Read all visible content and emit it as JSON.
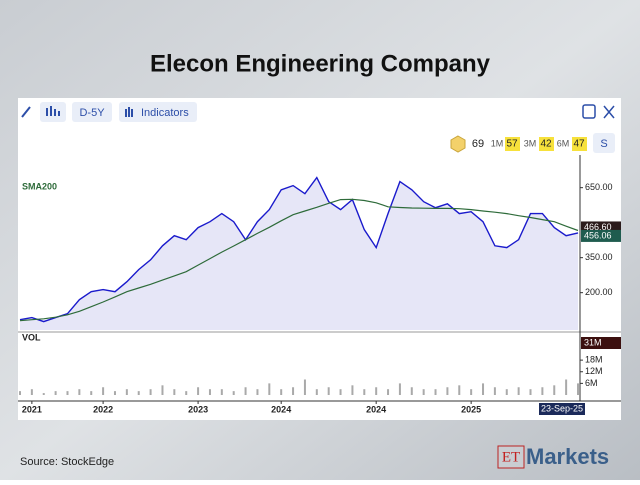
{
  "header": {
    "title": "Elecon Engineering Company"
  },
  "toolbar": {
    "period": "D-5Y",
    "indicators": "Indicators"
  },
  "ratings": {
    "score": 69,
    "items": [
      {
        "label": "1M",
        "value": 57
      },
      {
        "label": "3M",
        "value": 42
      },
      {
        "label": "6M",
        "value": 47
      }
    ],
    "button": "S"
  },
  "chart_data": {
    "type": "line",
    "categories": [
      null,
      "2021",
      null,
      null,
      null,
      null,
      null,
      "2022",
      null,
      null,
      null,
      null,
      null,
      null,
      null,
      "2023",
      null,
      null,
      null,
      null,
      null,
      null,
      "2024",
      null,
      null,
      null,
      null,
      null,
      null,
      null,
      "2024",
      null,
      null,
      null,
      null,
      null,
      null,
      null,
      "2025",
      null,
      null,
      null,
      null,
      null,
      null,
      null,
      null,
      null
    ],
    "series": [
      {
        "color": "#1a1acc",
        "area_color": "#e6e6f7",
        "values": [
          84,
          93,
          76,
          93,
          110,
          170,
          204,
          213,
          204,
          247,
          299,
          341,
          401,
          444,
          427,
          479,
          504,
          539,
          504,
          427,
          504,
          556,
          641,
          659,
          624,
          693,
          590,
          556,
          599,
          470,
          393,
          539,
          676,
          641,
          590,
          564,
          581,
          539,
          547,
          504,
          401,
          393,
          427,
          539,
          539,
          479,
          444,
          456.06
        ]
      },
      {
        "name": "SMA200",
        "color": "#2e6b3a",
        "values": [
          80,
          84,
          88,
          95,
          105,
          120,
          140,
          160,
          182,
          204,
          220,
          236,
          254,
          272,
          290,
          318,
          346,
          374,
          400,
          427,
          454,
          480,
          508,
          534,
          550,
          566,
          583,
          599,
          600,
          595,
          585,
          568,
          565,
          563,
          562,
          561,
          561,
          560,
          556,
          550,
          545,
          539,
          530,
          522,
          513,
          504,
          485,
          466.6
        ]
      },
      {
        "name": "VOL",
        "type": "bar",
        "axis": "y2",
        "color": "#a9a9a9",
        "values": [
          2,
          3,
          1,
          2,
          2,
          3,
          2,
          4,
          2,
          3,
          2,
          3,
          5,
          3,
          2,
          4,
          3,
          3,
          2,
          4,
          3,
          6,
          3,
          4,
          8,
          3,
          4,
          3,
          5,
          3,
          4,
          3,
          6,
          4,
          3,
          3,
          4,
          5,
          3,
          6,
          4,
          3,
          4,
          3,
          4,
          5,
          8,
          6
        ]
      }
    ],
    "ylim": [
      40,
      790
    ],
    "yticks": [
      {
        "value": 650,
        "label": "650.00"
      },
      {
        "value": 350,
        "label": "350.00"
      },
      {
        "value": 200,
        "label": "200.00"
      }
    ],
    "y2lim": [
      0,
      32
    ],
    "y2ticks": [
      {
        "value": 18,
        "label": "18M"
      },
      {
        "value": 12,
        "label": "12M"
      },
      {
        "value": 6,
        "label": "6M"
      }
    ],
    "tags": [
      {
        "value": 466.6,
        "label": "466.60",
        "color": "#2b1b1b"
      },
      {
        "value": 456.06,
        "label": "456.06",
        "color": "#1f5c4f"
      }
    ],
    "volume_tag": "31M",
    "date_tag": "23-Sep-25"
  },
  "footer": {
    "source": "Source:  StockEdge",
    "logo_et": "ET",
    "logo_markets": "Markets"
  }
}
